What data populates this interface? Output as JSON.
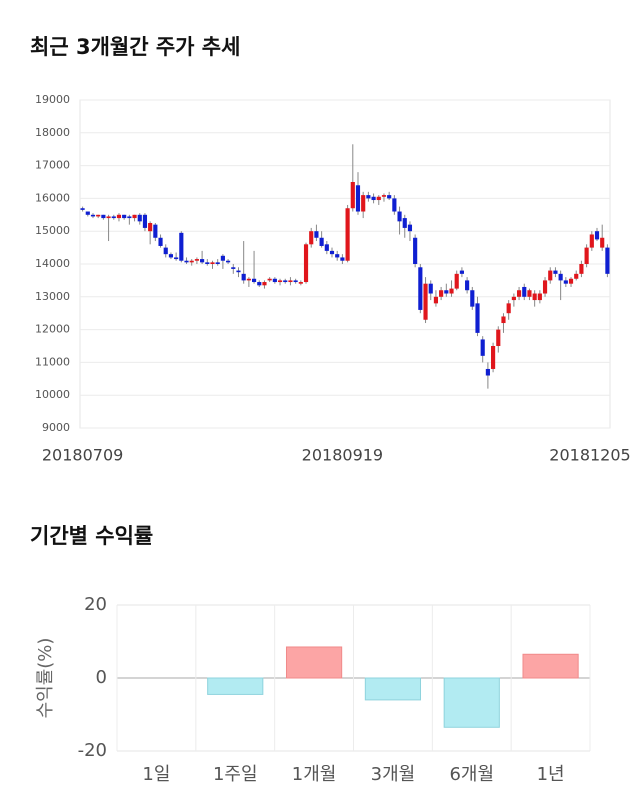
{
  "chart_data": [
    {
      "type": "candlestick",
      "title": "최근 3개월간 주가 추세",
      "categories": [
        "20180709",
        null,
        null,
        null,
        null,
        null,
        null,
        null,
        null,
        null,
        null,
        null,
        null,
        null,
        null,
        null,
        null,
        null,
        null,
        null,
        null,
        null,
        null,
        null,
        null,
        null,
        null,
        null,
        null,
        null,
        null,
        null,
        null,
        null,
        null,
        null,
        null,
        null,
        null,
        null,
        null,
        null,
        null,
        null,
        null,
        null,
        null,
        null,
        null,
        null,
        "20180919",
        null,
        null,
        null,
        null,
        null,
        null,
        null,
        null,
        null,
        null,
        null,
        null,
        null,
        null,
        null,
        null,
        null,
        null,
        null,
        null,
        null,
        null,
        null,
        null,
        null,
        null,
        null,
        null,
        null,
        null,
        null,
        null,
        null,
        null,
        null,
        null,
        null,
        null,
        null,
        null,
        null,
        null,
        null,
        null,
        null,
        null,
        null,
        "20181205",
        null,
        null,
        null
      ],
      "ohlc": [
        [
          15700,
          15750,
          15600,
          15650
        ],
        [
          15600,
          15600,
          15450,
          15500
        ],
        [
          15500,
          15550,
          15400,
          15450
        ],
        [
          15450,
          15500,
          15400,
          15500
        ],
        [
          15500,
          15500,
          15350,
          15400
        ],
        [
          15400,
          15500,
          14700,
          15450
        ],
        [
          15450,
          15500,
          15350,
          15400
        ],
        [
          15400,
          15550,
          15300,
          15500
        ],
        [
          15500,
          15500,
          15350,
          15400
        ],
        [
          15450,
          15500,
          15200,
          15400
        ],
        [
          15400,
          15500,
          15300,
          15500
        ],
        [
          15500,
          15550,
          15200,
          15300
        ],
        [
          15500,
          15550,
          15000,
          15100
        ],
        [
          15000,
          15300,
          14600,
          15250
        ],
        [
          15200,
          15250,
          14700,
          14800
        ],
        [
          14800,
          14900,
          14500,
          14550
        ],
        [
          14500,
          14600,
          14200,
          14300
        ],
        [
          14300,
          14350,
          14150,
          14200
        ],
        [
          14200,
          14350,
          14100,
          14150
        ],
        [
          14950,
          15000,
          14050,
          14100
        ],
        [
          14100,
          14200,
          14000,
          14050
        ],
        [
          14050,
          14150,
          13950,
          14100
        ],
        [
          14100,
          14200,
          14000,
          14150
        ],
        [
          14150,
          14400,
          14000,
          14050
        ],
        [
          14050,
          14150,
          13950,
          14000
        ],
        [
          14000,
          14100,
          13850,
          14050
        ],
        [
          14050,
          14150,
          13950,
          14000
        ],
        [
          14250,
          14300,
          13850,
          14100
        ],
        [
          14100,
          14150,
          14000,
          14050
        ],
        [
          13900,
          14000,
          13700,
          13850
        ],
        [
          13800,
          13900,
          13600,
          13750
        ],
        [
          13700,
          14700,
          13400,
          13500
        ],
        [
          13500,
          13600,
          13300,
          13550
        ],
        [
          13550,
          14400,
          13400,
          13450
        ],
        [
          13450,
          13500,
          13300,
          13350
        ],
        [
          13350,
          13500,
          13250,
          13450
        ],
        [
          13500,
          13600,
          13450,
          13550
        ],
        [
          13550,
          13600,
          13400,
          13450
        ],
        [
          13450,
          13550,
          13350,
          13500
        ],
        [
          13500,
          13550,
          13400,
          13450
        ],
        [
          13450,
          13600,
          13350,
          13500
        ],
        [
          13500,
          13550,
          13400,
          13450
        ],
        [
          13400,
          13500,
          13350,
          13450
        ],
        [
          13450,
          14650,
          13400,
          14600
        ],
        [
          14600,
          15100,
          14500,
          15000
        ],
        [
          15000,
          15200,
          14700,
          14800
        ],
        [
          14800,
          15000,
          14500,
          14550
        ],
        [
          14600,
          14700,
          14300,
          14400
        ],
        [
          14400,
          14500,
          14200,
          14300
        ],
        [
          14300,
          14400,
          14100,
          14200
        ],
        [
          14200,
          14300,
          14000,
          14100
        ],
        [
          14100,
          15800,
          14050,
          15700
        ],
        [
          15700,
          17650,
          15600,
          16500
        ],
        [
          16400,
          16800,
          15500,
          15600
        ],
        [
          15600,
          16200,
          15400,
          16100
        ],
        [
          16100,
          16200,
          15900,
          16000
        ],
        [
          16050,
          16150,
          15850,
          15950
        ],
        [
          15950,
          16100,
          15800,
          16050
        ],
        [
          16050,
          16150,
          15900,
          16100
        ],
        [
          16100,
          16200,
          15950,
          16000
        ],
        [
          16000,
          16100,
          15500,
          15600
        ],
        [
          15600,
          15750,
          14900,
          15300
        ],
        [
          15400,
          15500,
          14800,
          15100
        ],
        [
          15200,
          15300,
          14700,
          15000
        ],
        [
          14800,
          14900,
          13900,
          14000
        ],
        [
          13900,
          14000,
          12500,
          12600
        ],
        [
          12300,
          13600,
          12200,
          13400
        ],
        [
          13400,
          13500,
          12900,
          13100
        ],
        [
          12800,
          13200,
          12700,
          13000
        ],
        [
          13000,
          13300,
          12900,
          13200
        ],
        [
          13200,
          13400,
          13000,
          13100
        ],
        [
          13100,
          13500,
          13000,
          13250
        ],
        [
          13250,
          13800,
          13200,
          13700
        ],
        [
          13800,
          13900,
          13600,
          13700
        ],
        [
          13500,
          13600,
          13100,
          13200
        ],
        [
          13200,
          13300,
          12600,
          12700
        ],
        [
          12800,
          13000,
          11800,
          11900
        ],
        [
          11700,
          11800,
          11000,
          11200
        ],
        [
          10800,
          11000,
          10200,
          10600
        ],
        [
          10800,
          11600,
          10700,
          11500
        ],
        [
          11500,
          12100,
          11300,
          12000
        ],
        [
          12200,
          12500,
          11900,
          12400
        ],
        [
          12500,
          12900,
          12300,
          12800
        ],
        [
          12900,
          13100,
          12700,
          13000
        ],
        [
          13000,
          13300,
          12900,
          13200
        ],
        [
          13300,
          13400,
          12900,
          13000
        ],
        [
          13000,
          13250,
          12900,
          13200
        ],
        [
          12900,
          13200,
          12700,
          13100
        ],
        [
          12900,
          13200,
          12800,
          13100
        ],
        [
          13100,
          13600,
          13000,
          13500
        ],
        [
          13500,
          13900,
          13400,
          13800
        ],
        [
          13800,
          13900,
          13600,
          13700
        ],
        [
          13700,
          13800,
          12900,
          13500
        ],
        [
          13500,
          13600,
          13300,
          13400
        ],
        [
          13400,
          13600,
          13300,
          13550
        ],
        [
          13550,
          13800,
          13500,
          13700
        ],
        [
          13700,
          14100,
          13600,
          14000
        ],
        [
          14000,
          14600,
          13900,
          14500
        ],
        [
          14500,
          15000,
          14400,
          14900
        ],
        [
          15000,
          15100,
          14700,
          14750
        ],
        [
          14500,
          15200,
          14400,
          14800
        ],
        [
          14500,
          14600,
          13600,
          13700
        ]
      ],
      "up_color": "#e0161c",
      "down_color": "#0f1fd1",
      "ylim": [
        9000,
        19000
      ],
      "yticks": [
        9000,
        10000,
        11000,
        12000,
        13000,
        14000,
        15000,
        16000,
        17000,
        18000,
        19000
      ],
      "grid": true
    },
    {
      "type": "bar",
      "title": "기간별 수익률",
      "ylabel": "수익률(%)",
      "categories": [
        "1일",
        "1주일",
        "1개월",
        "3개월",
        "6개월",
        "1년"
      ],
      "values": [
        0,
        -4.5,
        8.5,
        -6,
        -13.5,
        6.5
      ],
      "positive_color": "#fca5a5",
      "negative_color": "#b2ebf2",
      "ylim": [
        -20,
        20
      ],
      "yticks": [
        -20,
        0,
        20
      ],
      "grid": true
    }
  ]
}
